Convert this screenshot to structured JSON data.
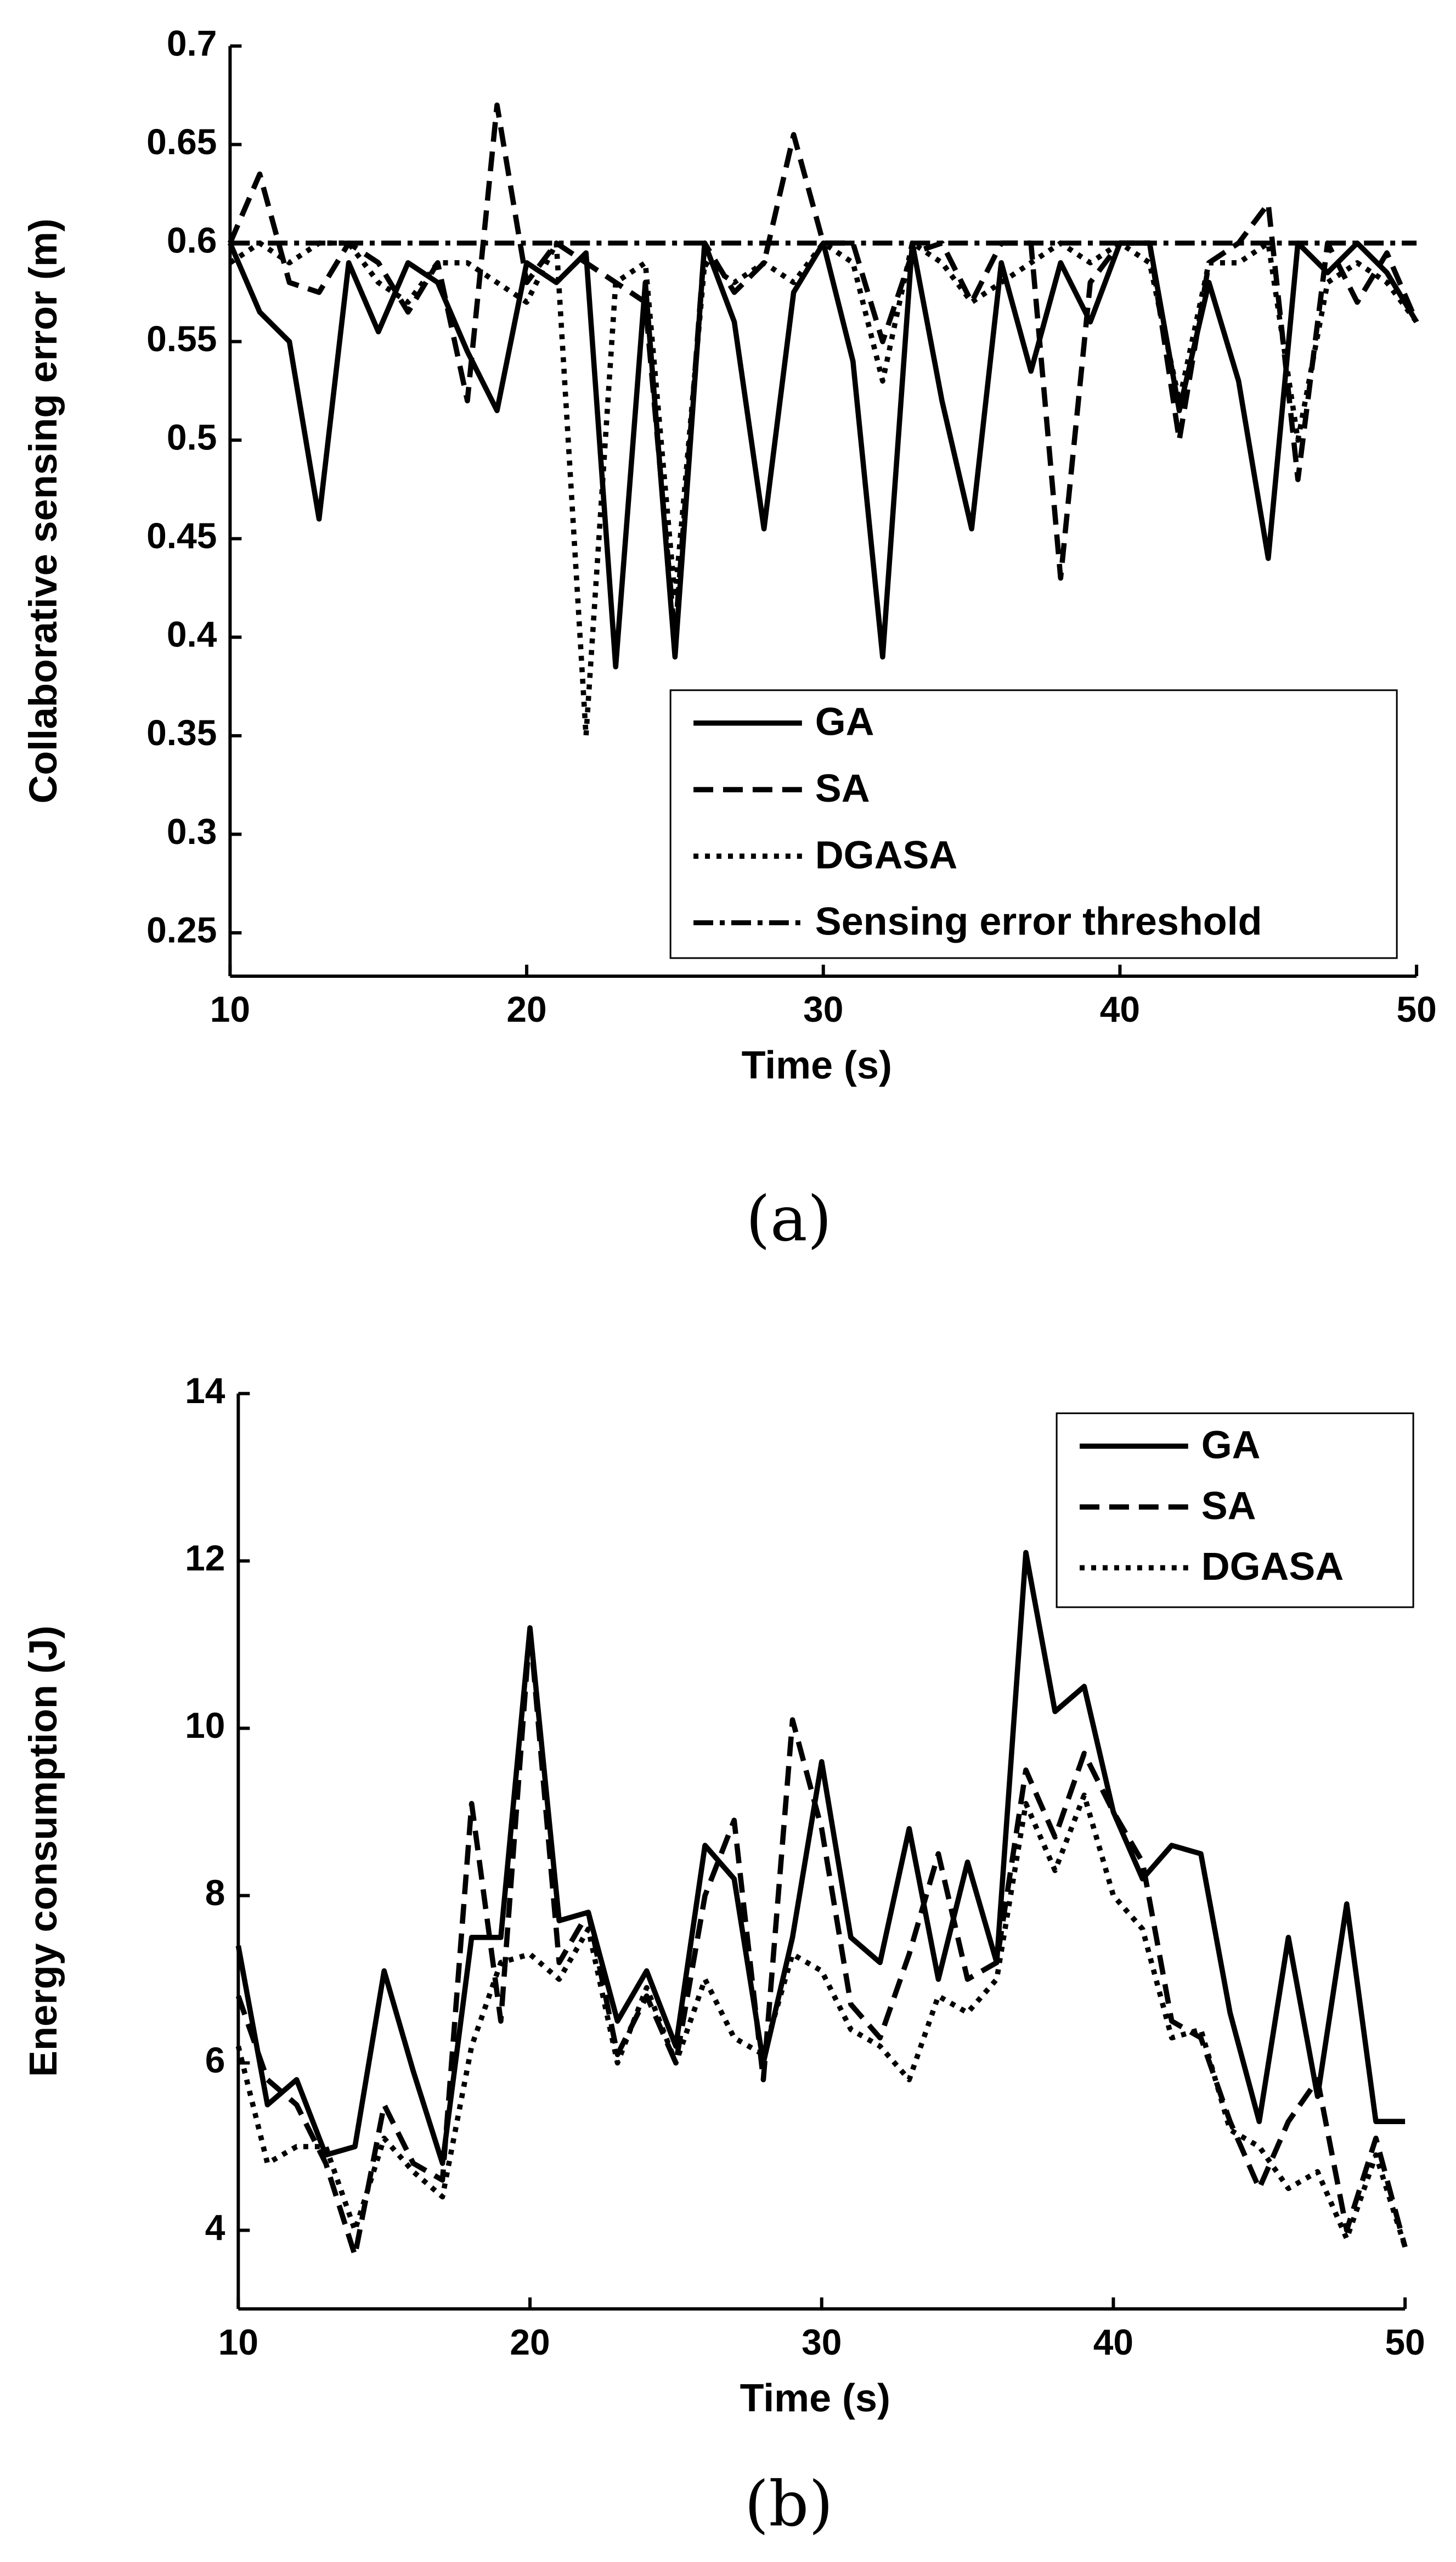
{
  "chart_data": [
    {
      "type": "line",
      "caption": "(a)",
      "xlabel": "Time (s)",
      "ylabel": "Collaborative sensing error (m)",
      "x": [
        10,
        11,
        12,
        13,
        14,
        15,
        16,
        17,
        18,
        19,
        20,
        21,
        22,
        23,
        24,
        25,
        26,
        27,
        28,
        29,
        30,
        31,
        32,
        33,
        34,
        35,
        36,
        37,
        38,
        39,
        40,
        41,
        42,
        43,
        44,
        45,
        46,
        47,
        48,
        49,
        50
      ],
      "series": [
        {
          "name": "GA",
          "color": "#000000",
          "style": "solid",
          "values": [
            0.6,
            0.565,
            0.55,
            0.46,
            0.59,
            0.555,
            0.59,
            0.58,
            0.545,
            0.515,
            0.59,
            0.58,
            0.595,
            0.385,
            0.58,
            0.39,
            0.6,
            0.56,
            0.455,
            0.575,
            0.6,
            0.54,
            0.39,
            0.6,
            0.52,
            0.455,
            0.59,
            0.535,
            0.59,
            0.56,
            0.6,
            0.6,
            0.515,
            0.58,
            0.53,
            0.44,
            0.6,
            0.585,
            0.6,
            0.585,
            0.56
          ]
        },
        {
          "name": "SA",
          "color": "#000000",
          "style": "dashed",
          "values": [
            0.6,
            0.635,
            0.58,
            0.575,
            0.6,
            0.59,
            0.565,
            0.59,
            0.52,
            0.67,
            0.58,
            0.6,
            0.59,
            0.58,
            0.57,
            0.4,
            0.6,
            0.575,
            0.59,
            0.655,
            0.6,
            0.6,
            0.55,
            0.595,
            0.6,
            0.57,
            0.6,
            0.6,
            0.43,
            0.58,
            0.6,
            0.6,
            0.5,
            0.59,
            0.6,
            0.62,
            0.48,
            0.6,
            0.57,
            0.595,
            0.56
          ]
        },
        {
          "name": "DGASA",
          "color": "#000000",
          "style": "dotted",
          "values": [
            0.59,
            0.6,
            0.59,
            0.6,
            0.6,
            0.58,
            0.57,
            0.59,
            0.59,
            0.58,
            0.57,
            0.6,
            0.35,
            0.58,
            0.59,
            0.42,
            0.59,
            0.58,
            0.59,
            0.58,
            0.6,
            0.59,
            0.53,
            0.6,
            0.59,
            0.57,
            0.58,
            0.59,
            0.6,
            0.59,
            0.6,
            0.59,
            0.52,
            0.59,
            0.59,
            0.6,
            0.5,
            0.58,
            0.59,
            0.58,
            0.56
          ]
        }
      ],
      "threshold": {
        "name": "Sensing error threshold",
        "value": 0.6,
        "color": "#000000",
        "style": "dashdot"
      },
      "xlim": [
        10,
        50
      ],
      "xticks": [
        10,
        20,
        30,
        40,
        50
      ],
      "ylim": [
        0.228,
        0.7
      ],
      "yticks": [
        0.25,
        0.3,
        0.35,
        0.4,
        0.45,
        0.5,
        0.55,
        0.6,
        0.65,
        0.7
      ],
      "legend": "lower right",
      "grid": false
    },
    {
      "type": "line",
      "caption": "(b)",
      "xlabel": "Time (s)",
      "ylabel": "Energy consumption (J)",
      "x": [
        10,
        11,
        12,
        13,
        14,
        15,
        16,
        17,
        18,
        19,
        20,
        21,
        22,
        23,
        24,
        25,
        26,
        27,
        28,
        29,
        30,
        31,
        32,
        33,
        34,
        35,
        36,
        37,
        38,
        39,
        40,
        41,
        42,
        43,
        44,
        45,
        46,
        47,
        48,
        49,
        50
      ],
      "series": [
        {
          "name": "GA",
          "color": "#000000",
          "style": "solid",
          "values": [
            7.4,
            5.5,
            5.8,
            4.9,
            5,
            7.1,
            5.9,
            4.8,
            7.5,
            7.5,
            11.2,
            7.7,
            7.8,
            6.5,
            7.1,
            6.2,
            8.6,
            8.2,
            6,
            7.5,
            9.6,
            7.5,
            7.2,
            8.8,
            7,
            8.4,
            7.2,
            12.1,
            10.2,
            10.5,
            9,
            8.2,
            8.6,
            8.5,
            6.6,
            5.3,
            7.5,
            5.6,
            7.9,
            5.3,
            5.3
          ]
        },
        {
          "name": "SA",
          "color": "#000000",
          "style": "dashed",
          "values": [
            6.8,
            5.8,
            5.5,
            4.8,
            3.7,
            5.5,
            4.8,
            4.6,
            9.1,
            6.5,
            11.2,
            7.2,
            7.8,
            6.1,
            6.8,
            6,
            8,
            8.9,
            5.8,
            10.1,
            8.8,
            6.7,
            6.3,
            7.3,
            8.5,
            7,
            7.2,
            9.5,
            8.7,
            9.7,
            9,
            8.4,
            6.5,
            6.3,
            5.3,
            4.5,
            5.3,
            5.8,
            4,
            5.1,
            3.8
          ]
        },
        {
          "name": "DGASA",
          "color": "#000000",
          "style": "dotted",
          "values": [
            6.2,
            4.8,
            5,
            5,
            4,
            5.1,
            4.7,
            4.4,
            6.2,
            7.2,
            7.3,
            7,
            7.6,
            6,
            6.9,
            6,
            7,
            6.3,
            6.1,
            7.3,
            7.1,
            6.4,
            6.2,
            5.8,
            6.8,
            6.6,
            7,
            9.1,
            8.3,
            9.2,
            8,
            7.6,
            6.3,
            6.4,
            5.2,
            5,
            4.5,
            4.7,
            3.9,
            4.9,
            3.8
          ]
        }
      ],
      "xlim": [
        10,
        50
      ],
      "xticks": [
        10,
        20,
        30,
        40,
        50
      ],
      "ylim": [
        3.06,
        14
      ],
      "yticks": [
        4,
        6,
        8,
        10,
        12,
        14
      ],
      "legend": "upper right",
      "grid": false
    }
  ]
}
